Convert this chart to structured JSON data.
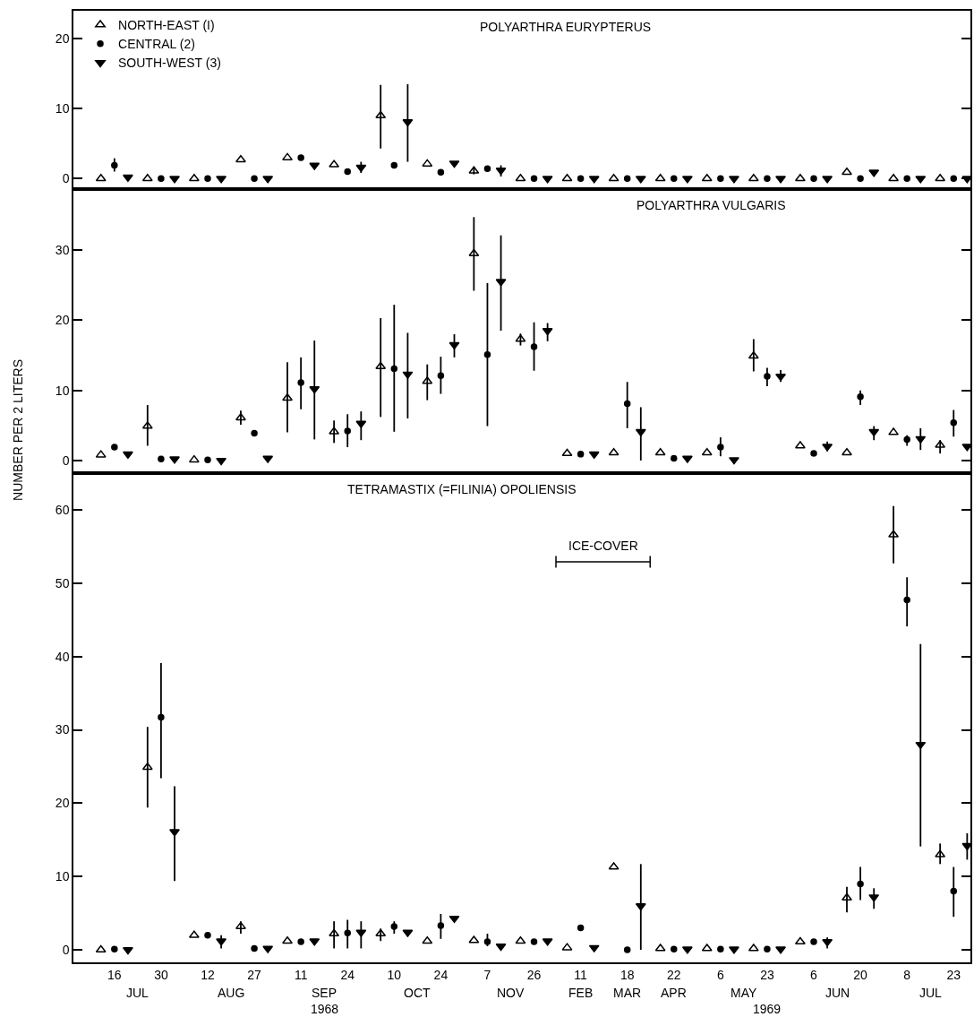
{
  "chart_data": [
    {
      "type": "scatter",
      "title": "POLYARTHRA EURYPTERUS",
      "categories": [
        "16",
        "30",
        "12",
        "27",
        "11",
        "24",
        "10",
        "24",
        "7",
        "26",
        "11",
        "18",
        "22",
        "6",
        "23",
        "6",
        "20",
        "8",
        "23"
      ],
      "ylim": [
        -1.5,
        24
      ],
      "yticks": [
        0,
        10,
        20
      ],
      "grid": false,
      "legend": "top left",
      "tick_labels": "y",
      "series": [
        {
          "name": "NORTH-EAST (I)",
          "color": "#000000",
          "marker": "triangle-open",
          "values": [
            0,
            0,
            0,
            2.7,
            3.0,
            2.0,
            9.0,
            2.1,
            1.1,
            0,
            0,
            0,
            0,
            0,
            0,
            0,
            0.9,
            0,
            0
          ],
          "errors": [
            null,
            null,
            null,
            null,
            null,
            null,
            [
              4.3,
              13.4
            ],
            null,
            [
              0.6,
              1.7
            ],
            null,
            null,
            null,
            null,
            null,
            null,
            null,
            null,
            null,
            null
          ]
        },
        {
          "name": "CENTRAL (2)",
          "color": "#000000",
          "marker": "circle",
          "values": [
            1.9,
            0,
            0,
            0,
            3.0,
            1.0,
            1.9,
            0.9,
            1.4,
            0,
            0,
            0,
            0,
            0,
            0,
            0,
            0,
            0,
            0
          ],
          "errors": [
            [
              1.0,
              2.9
            ],
            null,
            null,
            null,
            null,
            null,
            null,
            null,
            null,
            null,
            null,
            null,
            null,
            null,
            null,
            null,
            null,
            null,
            null
          ]
        },
        {
          "name": "SOUTH-WEST (3)",
          "color": "#000000",
          "marker": "triangle-down",
          "values": [
            0.2,
            0,
            0,
            0,
            1.9,
            1.6,
            8.1,
            2.2,
            1.2,
            0,
            0,
            0,
            0,
            0,
            0,
            0,
            0.9,
            0,
            0
          ],
          "errors": [
            null,
            null,
            null,
            null,
            null,
            [
              0.8,
              2.4
            ],
            [
              2.4,
              13.5
            ],
            null,
            [
              0.3,
              1.9
            ],
            null,
            null,
            null,
            null,
            null,
            null,
            null,
            null,
            null,
            null
          ]
        }
      ]
    },
    {
      "type": "scatter",
      "title": "POLYARTHRA VULGARIS",
      "ylabel": "NUMBER PER 2 LITERS",
      "categories": [
        "16",
        "30",
        "12",
        "27",
        "11",
        "24",
        "10",
        "24",
        "7",
        "26",
        "11",
        "18",
        "22",
        "6",
        "23",
        "6",
        "20",
        "8",
        "23"
      ],
      "ylim": [
        -1.8,
        38.7
      ],
      "yticks": [
        0,
        10,
        20,
        30
      ],
      "grid": false,
      "tick_labels": "y",
      "series": [
        {
          "color": "#000000",
          "marker": "triangle-open",
          "values": [
            0.8,
            4.9,
            0.1,
            6.1,
            8.9,
            4.1,
            13.4,
            11.3,
            29.5,
            17.3,
            1.0,
            1.1,
            1.1,
            1.1,
            14.9,
            2.1,
            1.1,
            4.0,
            2.2
          ],
          "errors": [
            null,
            [
              2.1,
              7.9
            ],
            null,
            [
              5.1,
              7.1
            ],
            [
              4.0,
              14.0
            ],
            [
              2.5,
              5.7
            ],
            [
              6.2,
              20.3
            ],
            [
              8.6,
              13.7
            ],
            [
              24.2,
              34.7
            ],
            [
              16.4,
              18.1
            ],
            null,
            null,
            null,
            null,
            [
              12.7,
              17.3
            ],
            null,
            null,
            null,
            [
              1.0,
              2.9
            ]
          ]
        },
        {
          "color": "#000000",
          "marker": "circle",
          "values": [
            1.9,
            0.2,
            0.1,
            3.9,
            11.1,
            4.2,
            13.1,
            12.1,
            15.1,
            16.2,
            0.9,
            8.1,
            0.3,
            1.9,
            12.0,
            1.0,
            9.1,
            3.0,
            5.4
          ],
          "errors": [
            null,
            null,
            null,
            null,
            [
              7.3,
              14.7
            ],
            [
              1.9,
              6.6
            ],
            [
              4.1,
              22.2
            ],
            [
              9.5,
              14.8
            ],
            [
              4.9,
              25.3
            ],
            [
              12.8,
              19.7
            ],
            null,
            [
              4.6,
              11.2
            ],
            null,
            [
              0.6,
              3.3
            ],
            [
              10.6,
              13.2
            ],
            null,
            [
              7.9,
              10.0
            ],
            [
              2.1,
              3.6
            ],
            [
              3.4,
              7.2
            ]
          ]
        },
        {
          "color": "#000000",
          "marker": "triangle-down",
          "values": [
            0.9,
            0.2,
            0,
            0.3,
            10.2,
            5.3,
            12.3,
            16.5,
            25.5,
            18.5,
            0.9,
            4.1,
            0.3,
            0.1,
            12.0,
            2.0,
            4.1,
            3.1,
            2.0
          ],
          "errors": [
            null,
            null,
            null,
            null,
            [
              3.0,
              17.1
            ],
            [
              2.9,
              7.0
            ],
            [
              6.0,
              18.2
            ],
            [
              14.7,
              18.0
            ],
            [
              18.5,
              32.1
            ],
            [
              17.0,
              19.6
            ],
            null,
            [
              0,
              7.6
            ],
            null,
            null,
            [
              11.2,
              12.9
            ],
            [
              1.3,
              2.7
            ],
            [
              2.9,
              4.9
            ],
            [
              1.5,
              4.6
            ],
            null
          ]
        }
      ]
    },
    {
      "type": "scatter",
      "title": "TETRAMASTIX (=FILINIA) OPOLIENSIS",
      "categories": [
        "16",
        "30",
        "12",
        "27",
        "11",
        "24",
        "10",
        "24",
        "7",
        "26",
        "11",
        "18",
        "22",
        "6",
        "23",
        "6",
        "20",
        "8",
        "23"
      ],
      "ylim": [
        -1.7,
        65
      ],
      "yticks": [
        0,
        10,
        20,
        30,
        40,
        50,
        60
      ],
      "grid": false,
      "annotations": [
        "ICE-COVER",
        "JUL",
        "AUG",
        "SEP",
        "OCT",
        "NOV",
        "FEB",
        "MAR",
        "APR",
        "MAY",
        "JUN",
        "JUL",
        "1968",
        "1969"
      ],
      "series": [
        {
          "color": "#000000",
          "marker": "triangle-open",
          "values": [
            0,
            24.9,
            2.0,
            3.2,
            1.2,
            2.2,
            2.2,
            1.2,
            1.3,
            1.2,
            0.3,
            11.3,
            0.2,
            0.2,
            0.2,
            1.1,
            7.1,
            56.6,
            13.0
          ],
          "errors": [
            null,
            [
              19.4,
              30.4
            ],
            null,
            [
              2.2,
              3.9
            ],
            null,
            [
              0.2,
              3.9
            ],
            [
              1.2,
              2.9
            ],
            null,
            null,
            null,
            null,
            null,
            null,
            null,
            null,
            null,
            [
              5.1,
              8.6
            ],
            [
              52.7,
              60.5
            ],
            [
              11.7,
              14.5
            ]
          ]
        },
        {
          "color": "#000000",
          "marker": "circle",
          "values": [
            0.1,
            31.7,
            2.0,
            0.2,
            1.1,
            2.3,
            3.2,
            3.3,
            1.1,
            1.1,
            3.0,
            0,
            0.1,
            0.1,
            0.1,
            1.1,
            9.0,
            47.7,
            8.0
          ],
          "errors": [
            null,
            [
              23.4,
              39.1
            ],
            null,
            null,
            null,
            [
              0.2,
              4.1
            ],
            [
              2.2,
              3.9
            ],
            [
              1.5,
              4.9
            ],
            [
              0.5,
              2.2
            ],
            null,
            null,
            null,
            null,
            null,
            null,
            null,
            [
              6.8,
              11.3
            ],
            [
              44.1,
              50.8
            ],
            [
              4.5,
              11.3
            ]
          ]
        },
        {
          "color": "#000000",
          "marker": "triangle-down",
          "values": [
            0,
            16.1,
            1.2,
            0.2,
            1.2,
            2.4,
            2.4,
            4.3,
            0.5,
            1.2,
            0.3,
            6.0,
            0.1,
            0.1,
            0.1,
            1.1,
            7.2,
            28.0,
            14.2
          ],
          "errors": [
            null,
            [
              9.4,
              22.3
            ],
            [
              0.2,
              2.0
            ],
            null,
            null,
            [
              0.2,
              3.9
            ],
            null,
            null,
            null,
            null,
            null,
            [
              0,
              11.7
            ],
            null,
            null,
            null,
            [
              0.2,
              1.7
            ],
            [
              5.6,
              8.4
            ],
            [
              14.1,
              41.7
            ],
            [
              12.3,
              15.9
            ]
          ]
        }
      ]
    }
  ]
}
